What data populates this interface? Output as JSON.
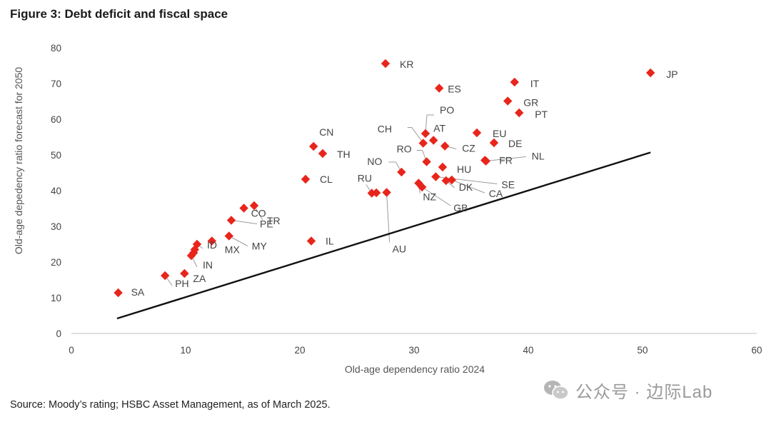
{
  "figure_title": "Figure 3: Debt deficit and fiscal space",
  "source": "Source: Moody’s rating; HSBC Asset Management, as of March 2025.",
  "watermark": {
    "text": "公众号 · 边际Lab",
    "icon": "wechat-icon"
  },
  "colors": {
    "marker": "#e8251b",
    "line": "#111111",
    "axis": "#bfbfbf",
    "text": "#444444"
  },
  "chart_data": {
    "type": "scatter",
    "title": "Debt deficit and fiscal space",
    "xlabel": "Old-age dependency ratio 2024",
    "ylabel": "Old-age depedency ratio forecast for 2050",
    "xlim": [
      0,
      60
    ],
    "ylim": [
      0,
      80
    ],
    "xticks": [
      0,
      10,
      20,
      30,
      40,
      50,
      60
    ],
    "yticks": [
      0,
      10,
      20,
      30,
      40,
      50,
      60,
      70,
      80
    ],
    "grid": false,
    "reference_line": {
      "x": [
        4,
        50.7
      ],
      "y": [
        4.2,
        50.7
      ]
    },
    "points": [
      {
        "label": "SA",
        "x": 4.1,
        "y": 11.4
      },
      {
        "label": "PH",
        "x": 8.2,
        "y": 16.2
      },
      {
        "label": "ZA",
        "x": 9.9,
        "y": 16.8
      },
      {
        "label": "IN",
        "x": 10.5,
        "y": 21.8
      },
      {
        "label": "",
        "x": 10.7,
        "y": 22.6
      },
      {
        "label": "",
        "x": 10.8,
        "y": 23.5
      },
      {
        "label": "ID",
        "x": 11.0,
        "y": 25.0
      },
      {
        "label": "MX",
        "x": 12.3,
        "y": 25.9
      },
      {
        "label": "MY",
        "x": 13.8,
        "y": 27.3
      },
      {
        "label": "PE",
        "x": 14.0,
        "y": 31.7
      },
      {
        "label": "CO",
        "x": 15.1,
        "y": 35.1
      },
      {
        "label": "TR",
        "x": 16.0,
        "y": 35.8
      },
      {
        "label": "CL",
        "x": 20.5,
        "y": 43.2
      },
      {
        "label": "CN",
        "x": 21.2,
        "y": 52.4
      },
      {
        "label": "TH",
        "x": 22.0,
        "y": 50.4
      },
      {
        "label": "IL",
        "x": 21.0,
        "y": 25.9
      },
      {
        "label": "KR",
        "x": 27.5,
        "y": 75.6
      },
      {
        "label": "RU",
        "x": 26.3,
        "y": 39.3
      },
      {
        "label": "",
        "x": 26.7,
        "y": 39.4
      },
      {
        "label": "AU",
        "x": 27.6,
        "y": 39.5
      },
      {
        "label": "NO",
        "x": 28.9,
        "y": 45.2
      },
      {
        "label": "NZ",
        "x": 30.4,
        "y": 42.1
      },
      {
        "label": "GB",
        "x": 30.7,
        "y": 41.0
      },
      {
        "label": "CH",
        "x": 30.8,
        "y": 53.3
      },
      {
        "label": "PO",
        "x": 31.0,
        "y": 56.0
      },
      {
        "label": "RO",
        "x": 31.1,
        "y": 48.1
      },
      {
        "label": "AT",
        "x": 31.7,
        "y": 54.1
      },
      {
        "label": "SE",
        "x": 31.9,
        "y": 43.9
      },
      {
        "label": "ES",
        "x": 32.2,
        "y": 68.7
      },
      {
        "label": "HU",
        "x": 32.5,
        "y": 46.6
      },
      {
        "label": "CZ",
        "x": 32.7,
        "y": 52.5
      },
      {
        "label": "DK",
        "x": 32.8,
        "y": 42.8
      },
      {
        "label": "CA",
        "x": 33.3,
        "y": 43.0
      },
      {
        "label": "EU",
        "x": 35.5,
        "y": 56.2
      },
      {
        "label": "FR",
        "x": 36.2,
        "y": 48.5
      },
      {
        "label": "NL",
        "x": 36.3,
        "y": 48.3
      },
      {
        "label": "DE",
        "x": 37.0,
        "y": 53.4
      },
      {
        "label": "GR",
        "x": 38.2,
        "y": 65.1
      },
      {
        "label": "IT",
        "x": 38.8,
        "y": 70.4
      },
      {
        "label": "PT",
        "x": 39.2,
        "y": 61.8
      },
      {
        "label": "JP",
        "x": 50.7,
        "y": 73.0
      }
    ]
  }
}
